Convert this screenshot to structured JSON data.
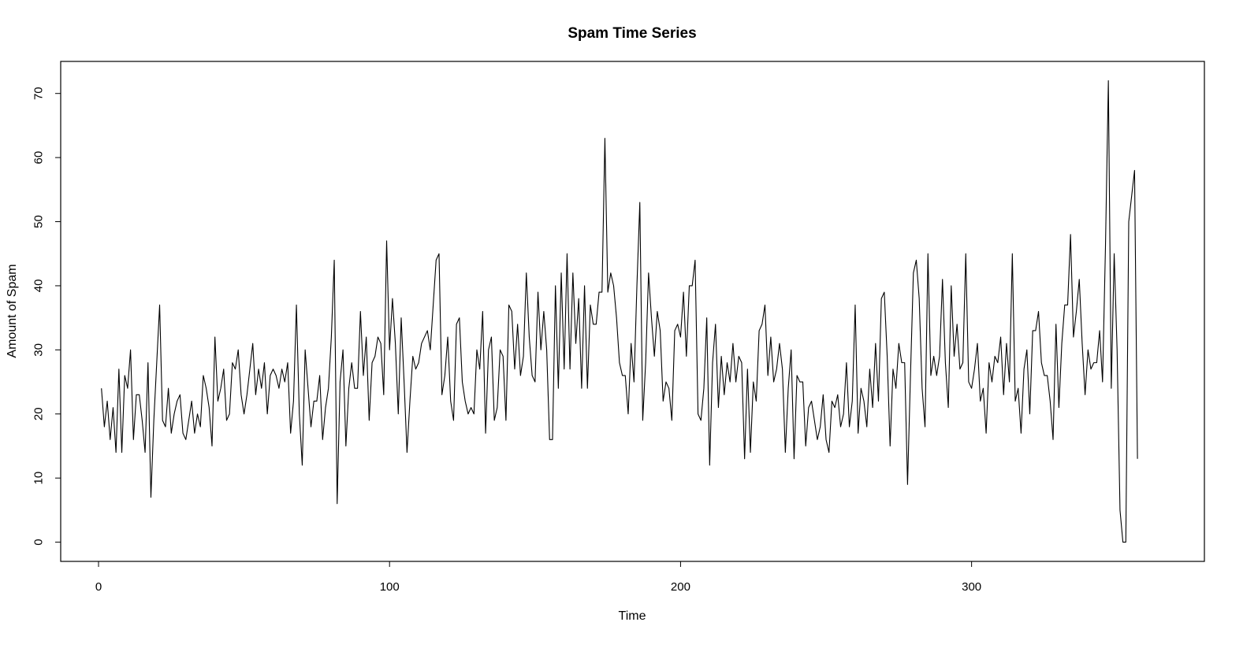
{
  "chart_data": {
    "type": "line",
    "title": "Spam Time Series",
    "xlabel": "Time",
    "ylabel": "Amount of Spam",
    "xlim": [
      -13,
      380
    ],
    "ylim": [
      -3,
      75
    ],
    "xticks": [
      0,
      100,
      200,
      300
    ],
    "yticks": [
      0,
      10,
      20,
      30,
      40,
      50,
      60,
      70
    ],
    "grid": false,
    "legend": "none",
    "series": [
      {
        "color": "#000000",
        "x_start": 1,
        "values": [
          24,
          18,
          22,
          16,
          21,
          14,
          27,
          14,
          26,
          24,
          30,
          16,
          23,
          23,
          19,
          14,
          28,
          7,
          19,
          28,
          37,
          19,
          18,
          24,
          17,
          20,
          22,
          23,
          17,
          16,
          19,
          22,
          17,
          20,
          18,
          26,
          24,
          21,
          15,
          32,
          22,
          24,
          27,
          19,
          20,
          28,
          27,
          30,
          23,
          20,
          23,
          27,
          31,
          23,
          27,
          24,
          28,
          20,
          26,
          27,
          26,
          24,
          27,
          25,
          28,
          17,
          22,
          37,
          20,
          12,
          30,
          24,
          18,
          22,
          22,
          26,
          16,
          21,
          24,
          32,
          44,
          6,
          25,
          30,
          15,
          24,
          28,
          24,
          24,
          36,
          26,
          32,
          19,
          28,
          29,
          32,
          31,
          23,
          47,
          30,
          38,
          31,
          20,
          35,
          25,
          14,
          22,
          29,
          27,
          28,
          31,
          32,
          33,
          30,
          37,
          44,
          45,
          23,
          26,
          32,
          22,
          19,
          34,
          35,
          25,
          22,
          20,
          21,
          20,
          30,
          27,
          36,
          17,
          30,
          32,
          19,
          21,
          30,
          29,
          19,
          37,
          36,
          27,
          34,
          26,
          29,
          42,
          32,
          26,
          25,
          39,
          30,
          36,
          30,
          16,
          16,
          40,
          24,
          42,
          27,
          45,
          27,
          42,
          31,
          38,
          24,
          40,
          24,
          37,
          34,
          34,
          39,
          39,
          63,
          39,
          42,
          40,
          35,
          28,
          26,
          26,
          20,
          31,
          25,
          40,
          53,
          19,
          28,
          42,
          35,
          29,
          36,
          33,
          22,
          25,
          24,
          19,
          33,
          34,
          32,
          39,
          29,
          40,
          40,
          44,
          20,
          19,
          24,
          35,
          12,
          28,
          34,
          21,
          29,
          23,
          28,
          25,
          31,
          25,
          29,
          28,
          13,
          27,
          14,
          25,
          22,
          33,
          34,
          37,
          26,
          32,
          25,
          27,
          31,
          27,
          14,
          24,
          30,
          13,
          26,
          25,
          25,
          15,
          21,
          22,
          19,
          16,
          18,
          23,
          16,
          14,
          22,
          21,
          23,
          18,
          20,
          28,
          18,
          22,
          37,
          17,
          24,
          22,
          18,
          27,
          21,
          31,
          22,
          38,
          39,
          29,
          15,
          27,
          24,
          31,
          28,
          28,
          9,
          26,
          42,
          44,
          38,
          24,
          18,
          45,
          26,
          29,
          26,
          29,
          41,
          28,
          21,
          40,
          29,
          34,
          27,
          28,
          45,
          25,
          24,
          27,
          31,
          22,
          24,
          17,
          28,
          25,
          29,
          28,
          32,
          23,
          31,
          25,
          45,
          22,
          24,
          17,
          27,
          30,
          20,
          33,
          33,
          36,
          28,
          26,
          26,
          22,
          16,
          34,
          21,
          31,
          37,
          37,
          48,
          32,
          36,
          41,
          31,
          23,
          30,
          27,
          28,
          28,
          33,
          25,
          46,
          72,
          24,
          45,
          30,
          5,
          0,
          0,
          50,
          54,
          58,
          13
        ]
      }
    ]
  }
}
